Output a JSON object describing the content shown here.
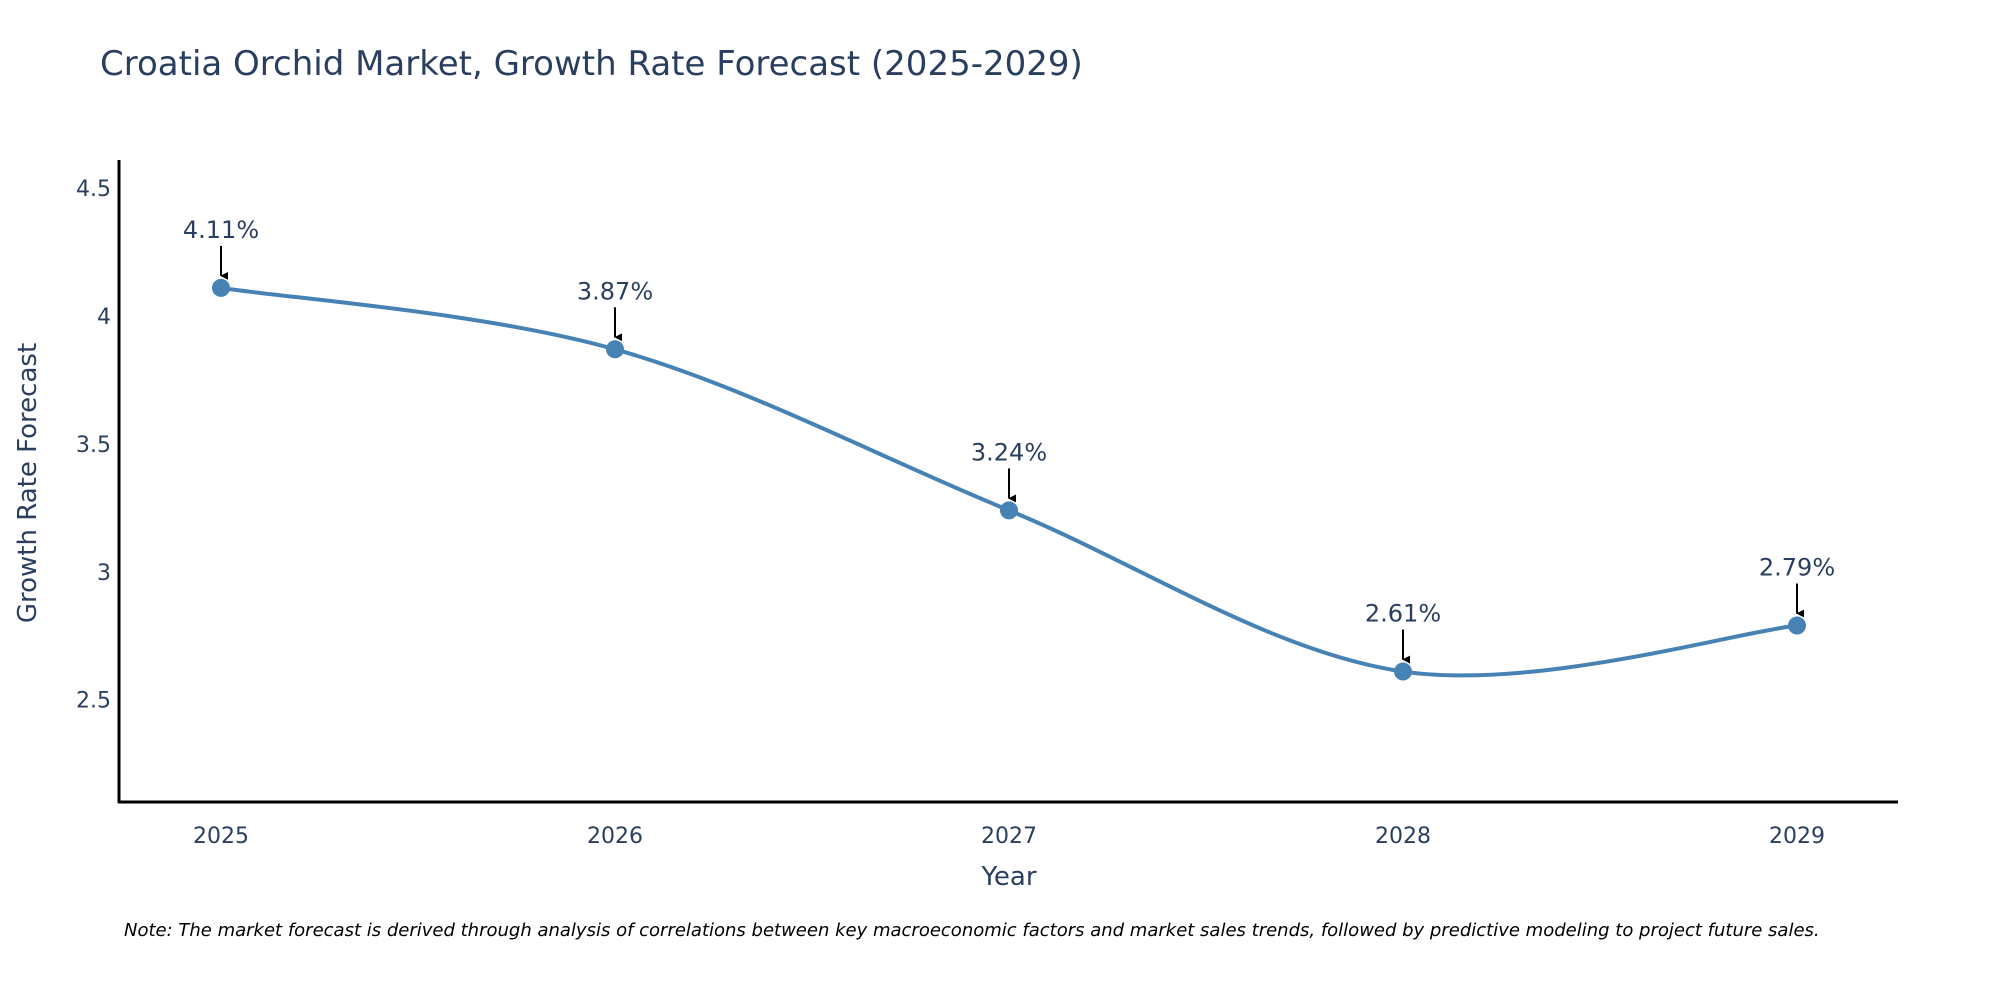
{
  "chart_data": {
    "type": "line",
    "title": "Croatia Orchid Market, Growth Rate Forecast (2025-2029)",
    "xlabel": "Year",
    "ylabel": "Growth Rate Forecast",
    "categories": [
      "2025",
      "2026",
      "2027",
      "2028",
      "2029"
    ],
    "values": [
      4.11,
      3.87,
      3.24,
      2.61,
      2.79
    ],
    "data_labels": [
      "4.11%",
      "3.87%",
      "3.24%",
      "2.61%",
      "2.79%"
    ],
    "y_ticks": [
      2.5,
      3,
      3.5,
      4,
      4.5
    ],
    "y_tick_labels": [
      "2.5",
      "3",
      "3.5",
      "4",
      "4.5"
    ],
    "ylim": [
      2.1,
      4.61
    ],
    "grid": false,
    "line_shape": "spline",
    "colors": {
      "line": "#4682b4",
      "marker": "#4682b4",
      "axis": "#000000",
      "text": "#2a3f5f"
    }
  },
  "footnote": "Note: The market forecast is derived through analysis of correlations between key macroeconomic factors and market sales trends, followed by predictive modeling to project future sales."
}
